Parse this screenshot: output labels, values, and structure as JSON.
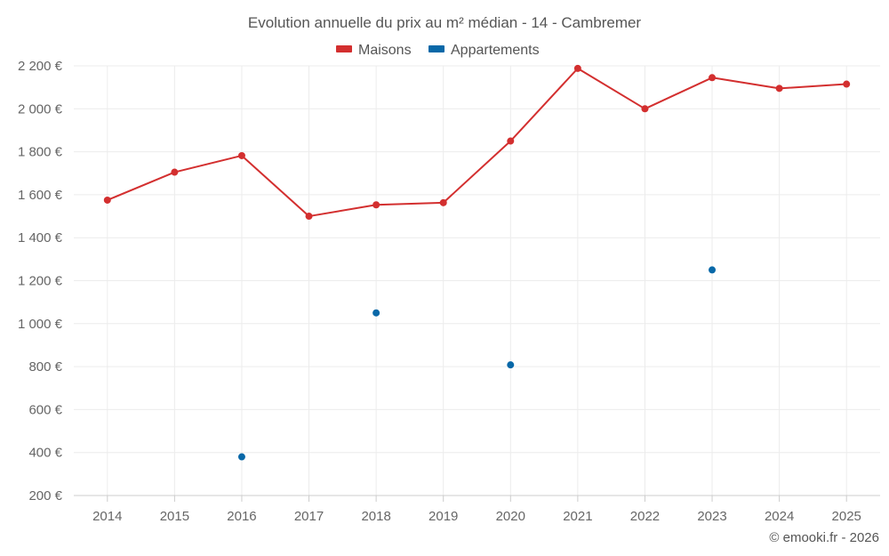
{
  "chart_data": {
    "type": "line",
    "title": "Evolution annuelle du prix au m² médian - 14 - Cambremer",
    "xlabel": "",
    "ylabel": "",
    "legend_position": "top-center",
    "grid": true,
    "categories": [
      "2014",
      "2015",
      "2016",
      "2017",
      "2018",
      "2019",
      "2020",
      "2021",
      "2022",
      "2023",
      "2024",
      "2025"
    ],
    "ylim": [
      200,
      2200
    ],
    "y_ticks": [
      200,
      400,
      600,
      800,
      1000,
      1200,
      1400,
      1600,
      1800,
      2000,
      2200
    ],
    "y_tick_labels": [
      "200 €",
      "400 €",
      "600 €",
      "800 €",
      "1 000 €",
      "1 200 €",
      "1 400 €",
      "1 600 €",
      "1 800 €",
      "2 000 €",
      "2 200 €"
    ],
    "series": [
      {
        "name": "Maisons",
        "color": "#d32f2f",
        "show_line": true,
        "values": [
          1575,
          1705,
          1782,
          1500,
          1553,
          1563,
          1850,
          2188,
          2000,
          2145,
          2095,
          2115
        ]
      },
      {
        "name": "Appartements",
        "color": "#0868a8",
        "show_line": false,
        "values": [
          null,
          null,
          380,
          null,
          1050,
          null,
          808,
          null,
          null,
          1250,
          null,
          null
        ]
      }
    ]
  },
  "credit": "© emooki.fr - 2026"
}
